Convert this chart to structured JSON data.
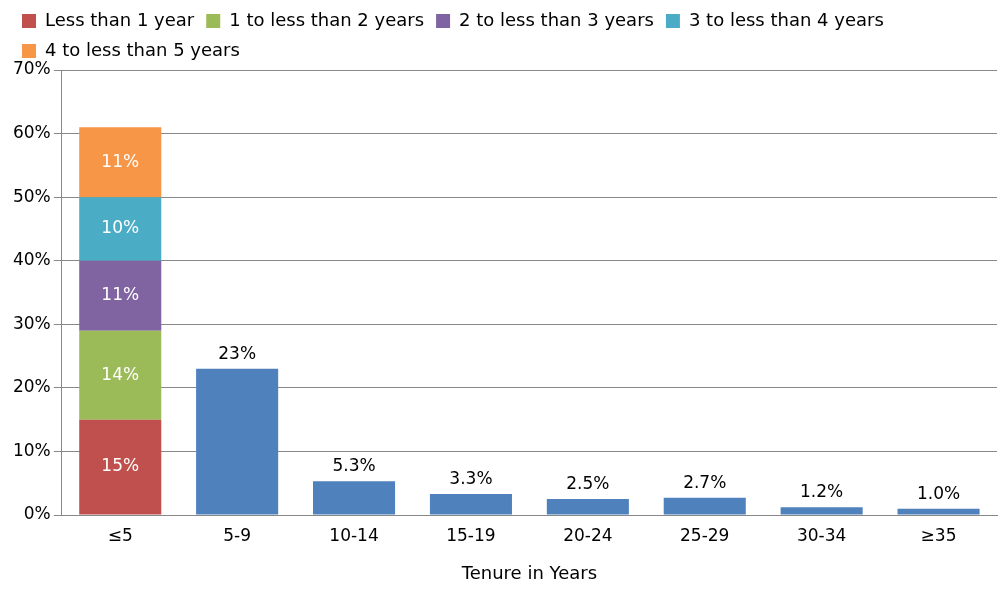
{
  "chart_data": {
    "type": "bar",
    "stacked": true,
    "xlabel": "Tenure in Years",
    "categories": [
      "≤5",
      "5-9",
      "10-14",
      "15-19",
      "20-24",
      "25-29",
      "30-34",
      "≥35"
    ],
    "series": [
      {
        "name": "Less than 1 year",
        "color": "#c0504d",
        "values": [
          15,
          null,
          null,
          null,
          null,
          null,
          null,
          null
        ],
        "value_labels": [
          "15%",
          null,
          null,
          null,
          null,
          null,
          null,
          null
        ]
      },
      {
        "name": "1 to less than 2 years",
        "color": "#9bbb59",
        "values": [
          14,
          null,
          null,
          null,
          null,
          null,
          null,
          null
        ],
        "value_labels": [
          "14%",
          null,
          null,
          null,
          null,
          null,
          null,
          null
        ]
      },
      {
        "name": "2 to less than 3 years",
        "color": "#8064a2",
        "values": [
          11,
          null,
          null,
          null,
          null,
          null,
          null,
          null
        ],
        "value_labels": [
          "11%",
          null,
          null,
          null,
          null,
          null,
          null,
          null
        ]
      },
      {
        "name": "3 to less than 4 years",
        "color": "#4bacc6",
        "values": [
          10,
          null,
          null,
          null,
          null,
          null,
          null,
          null
        ],
        "value_labels": [
          "10%",
          null,
          null,
          null,
          null,
          null,
          null,
          null
        ]
      },
      {
        "name": "4 to less than 5 years",
        "color": "#f79646",
        "values": [
          11,
          null,
          null,
          null,
          null,
          null,
          null,
          null
        ],
        "value_labels": [
          "11%",
          null,
          null,
          null,
          null,
          null,
          null,
          null
        ]
      },
      {
        "color": "#4f81bd",
        "values": [
          null,
          23,
          5.3,
          3.3,
          2.5,
          2.7,
          1.2,
          1.0
        ],
        "value_labels": [
          null,
          "23%",
          "5.3%",
          "3.3%",
          "2.5%",
          "2.7%",
          "1.2%",
          "1.0%"
        ]
      }
    ],
    "ylim": [
      0,
      70
    ],
    "yticks": [
      {
        "value": 0,
        "label": "0%"
      },
      {
        "value": 10,
        "label": "10%"
      },
      {
        "value": 20,
        "label": "20%"
      },
      {
        "value": 30,
        "label": "30%"
      },
      {
        "value": 40,
        "label": "40%"
      },
      {
        "value": 50,
        "label": "50%"
      },
      {
        "value": 60,
        "label": "60%"
      },
      {
        "value": 70,
        "label": "70%"
      }
    ],
    "grid": "y",
    "legend": "top"
  }
}
